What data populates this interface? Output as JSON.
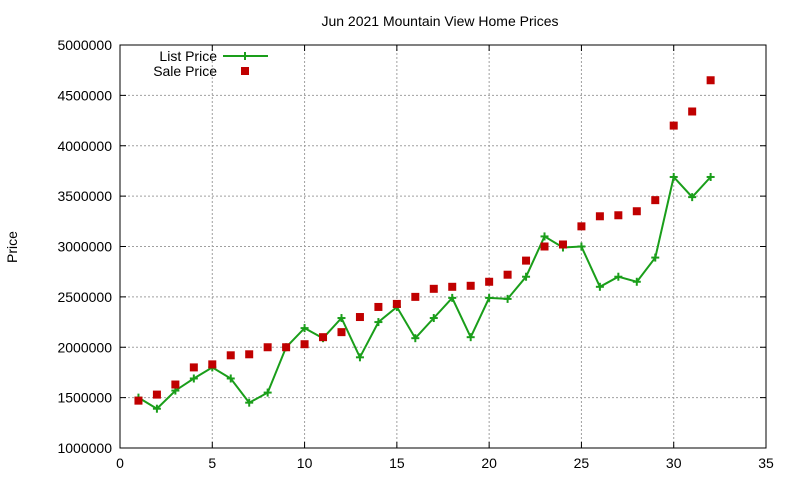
{
  "chart_data": {
    "type": "line",
    "title": "Jun 2021 Mountain View Home Prices",
    "xlabel": "",
    "ylabel": "Price",
    "xlim": [
      0,
      35
    ],
    "ylim": [
      1000000,
      5000000
    ],
    "xticks": [
      "0",
      "5",
      "10",
      "15",
      "20",
      "25",
      "30",
      "35"
    ],
    "yticks": [
      "1000000",
      "1500000",
      "2000000",
      "2500000",
      "3000000",
      "3500000",
      "4000000",
      "4500000",
      "5000000"
    ],
    "grid": true,
    "legend_position": "top-left",
    "series": [
      {
        "name": "List Price",
        "kind": "line-with-plus-markers",
        "color": "#1a9e1a",
        "x": [
          1,
          2,
          3,
          4,
          5,
          6,
          7,
          8,
          9,
          10,
          11,
          12,
          13,
          14,
          15,
          16,
          17,
          18,
          19,
          20,
          21,
          22,
          23,
          24,
          25,
          26,
          27,
          28,
          29,
          30,
          31,
          32
        ],
        "y": [
          1500000,
          1390000,
          1570000,
          1690000,
          1800000,
          1690000,
          1450000,
          1550000,
          2000000,
          2190000,
          2090000,
          2290000,
          1900000,
          2250000,
          2400000,
          2090000,
          2290000,
          2490000,
          2100000,
          2490000,
          2480000,
          2700000,
          3100000,
          2990000,
          3000000,
          2600000,
          2700000,
          2650000,
          2890000,
          3690000,
          3490000,
          3690000
        ]
      },
      {
        "name": "Sale Price",
        "kind": "square-markers",
        "color": "#c00000",
        "x": [
          1,
          2,
          3,
          4,
          5,
          6,
          7,
          8,
          9,
          10,
          11,
          12,
          13,
          14,
          15,
          16,
          17,
          18,
          19,
          20,
          21,
          22,
          23,
          24,
          25,
          26,
          27,
          28,
          29,
          30,
          31,
          32
        ],
        "y": [
          1470000,
          1530000,
          1630000,
          1800000,
          1830000,
          1920000,
          1930000,
          2000000,
          2000000,
          2030000,
          2100000,
          2150000,
          2300000,
          2400000,
          2430000,
          2500000,
          2580000,
          2600000,
          2610000,
          2650000,
          2720000,
          2860000,
          3000000,
          3020000,
          3200000,
          3300000,
          3310000,
          3350000,
          3460000,
          4200000,
          4340000,
          4650000
        ]
      }
    ]
  }
}
